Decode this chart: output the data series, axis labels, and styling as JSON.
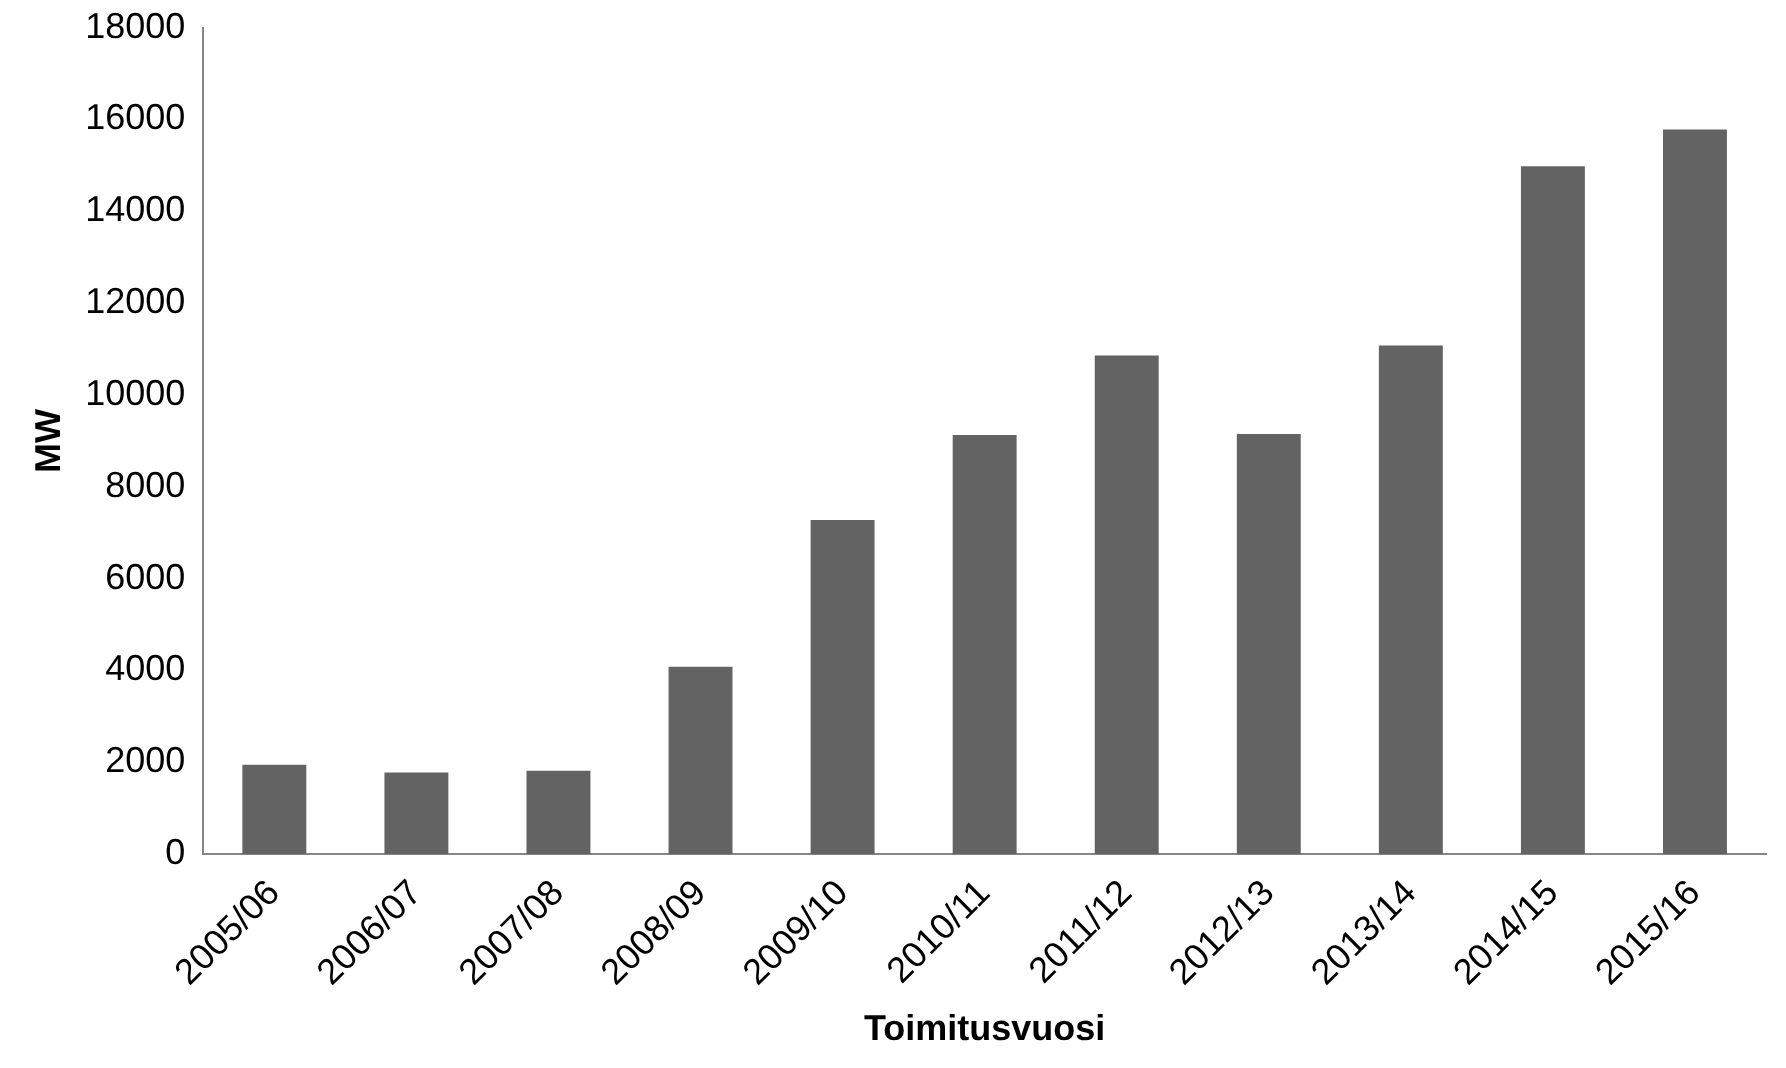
{
  "chart_data": {
    "type": "bar",
    "xlabel": "Toimitusvuosi",
    "ylabel": "MW",
    "categories": [
      "2005/06",
      "2006/07",
      "2007/08",
      "2008/09",
      "2009/10",
      "2010/11",
      "2011/12",
      "2012/13",
      "2013/14",
      "2014/15",
      "2015/16"
    ],
    "values": [
      1950,
      1780,
      1820,
      4080,
      7280,
      9130,
      10860,
      9150,
      11080,
      14980,
      15780
    ],
    "color": "#636363",
    "ylim": [
      0,
      18000
    ],
    "yticks": [
      0,
      2000,
      4000,
      6000,
      8000,
      10000,
      12000,
      14000,
      16000,
      18000
    ],
    "grid": false,
    "legend": false
  }
}
